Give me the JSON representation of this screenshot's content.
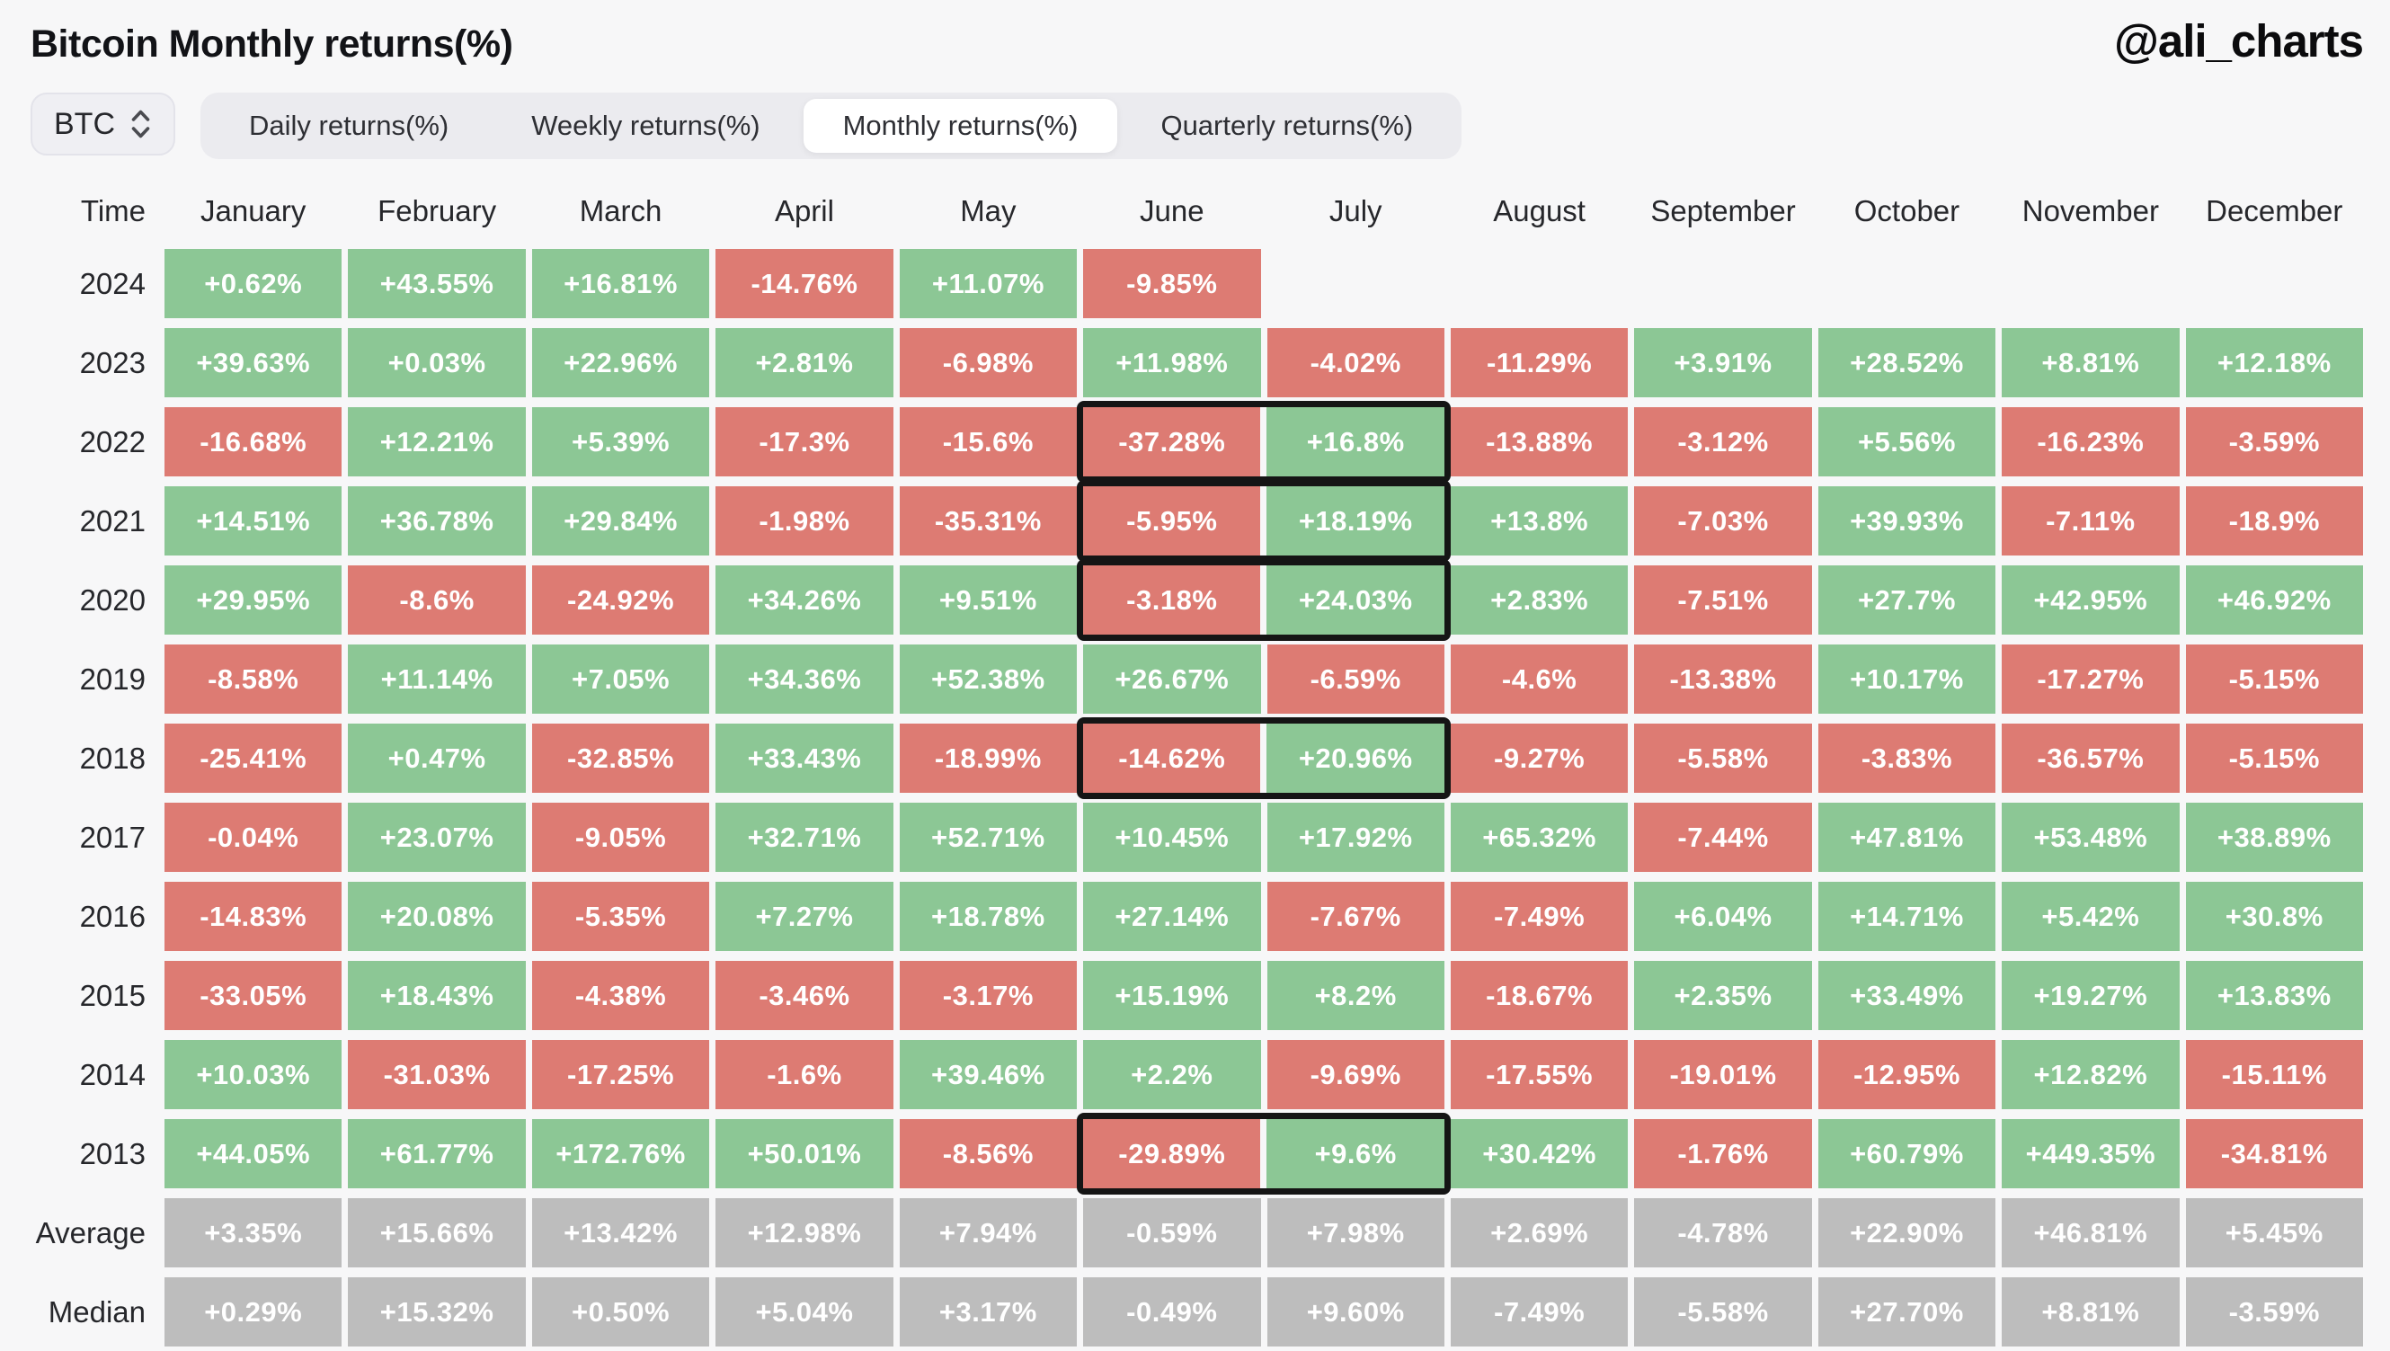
{
  "header": {
    "title": "Bitcoin Monthly returns(%)",
    "handle": "@ali_charts"
  },
  "controls": {
    "asset": "BTC",
    "asset_icon": "updown-chevron-icon",
    "tabs": [
      {
        "label": "Daily returns(%)",
        "active": false
      },
      {
        "label": "Weekly returns(%)",
        "active": false
      },
      {
        "label": "Monthly returns(%)",
        "active": true
      },
      {
        "label": "Quarterly returns(%)",
        "active": false
      }
    ]
  },
  "chart_data": {
    "type": "heatmap",
    "title": "Bitcoin Monthly returns(%)",
    "time_header": "Time",
    "months": [
      "January",
      "February",
      "March",
      "April",
      "May",
      "June",
      "July",
      "August",
      "September",
      "October",
      "November",
      "December"
    ],
    "rows": [
      {
        "label": "2024",
        "kind": "year",
        "box": false,
        "values": [
          "+0.62%",
          "+43.55%",
          "+16.81%",
          "-14.76%",
          "+11.07%",
          "-9.85%",
          "",
          "",
          "",
          "",
          "",
          ""
        ]
      },
      {
        "label": "2023",
        "kind": "year",
        "box": false,
        "values": [
          "+39.63%",
          "+0.03%",
          "+22.96%",
          "+2.81%",
          "-6.98%",
          "+11.98%",
          "-4.02%",
          "-11.29%",
          "+3.91%",
          "+28.52%",
          "+8.81%",
          "+12.18%"
        ]
      },
      {
        "label": "2022",
        "kind": "year",
        "box": true,
        "values": [
          "-16.68%",
          "+12.21%",
          "+5.39%",
          "-17.3%",
          "-15.6%",
          "-37.28%",
          "+16.8%",
          "-13.88%",
          "-3.12%",
          "+5.56%",
          "-16.23%",
          "-3.59%"
        ]
      },
      {
        "label": "2021",
        "kind": "year",
        "box": true,
        "values": [
          "+14.51%",
          "+36.78%",
          "+29.84%",
          "-1.98%",
          "-35.31%",
          "-5.95%",
          "+18.19%",
          "+13.8%",
          "-7.03%",
          "+39.93%",
          "-7.11%",
          "-18.9%"
        ]
      },
      {
        "label": "2020",
        "kind": "year",
        "box": true,
        "values": [
          "+29.95%",
          "-8.6%",
          "-24.92%",
          "+34.26%",
          "+9.51%",
          "-3.18%",
          "+24.03%",
          "+2.83%",
          "-7.51%",
          "+27.7%",
          "+42.95%",
          "+46.92%"
        ]
      },
      {
        "label": "2019",
        "kind": "year",
        "box": false,
        "values": [
          "-8.58%",
          "+11.14%",
          "+7.05%",
          "+34.36%",
          "+52.38%",
          "+26.67%",
          "-6.59%",
          "-4.6%",
          "-13.38%",
          "+10.17%",
          "-17.27%",
          "-5.15%"
        ]
      },
      {
        "label": "2018",
        "kind": "year",
        "box": true,
        "values": [
          "-25.41%",
          "+0.47%",
          "-32.85%",
          "+33.43%",
          "-18.99%",
          "-14.62%",
          "+20.96%",
          "-9.27%",
          "-5.58%",
          "-3.83%",
          "-36.57%",
          "-5.15%"
        ]
      },
      {
        "label": "2017",
        "kind": "year",
        "box": false,
        "values": [
          "-0.04%",
          "+23.07%",
          "-9.05%",
          "+32.71%",
          "+52.71%",
          "+10.45%",
          "+17.92%",
          "+65.32%",
          "-7.44%",
          "+47.81%",
          "+53.48%",
          "+38.89%"
        ]
      },
      {
        "label": "2016",
        "kind": "year",
        "box": false,
        "values": [
          "-14.83%",
          "+20.08%",
          "-5.35%",
          "+7.27%",
          "+18.78%",
          "+27.14%",
          "-7.67%",
          "-7.49%",
          "+6.04%",
          "+14.71%",
          "+5.42%",
          "+30.8%"
        ]
      },
      {
        "label": "2015",
        "kind": "year",
        "box": false,
        "values": [
          "-33.05%",
          "+18.43%",
          "-4.38%",
          "-3.46%",
          "-3.17%",
          "+15.19%",
          "+8.2%",
          "-18.67%",
          "+2.35%",
          "+33.49%",
          "+19.27%",
          "+13.83%"
        ]
      },
      {
        "label": "2014",
        "kind": "year",
        "box": false,
        "values": [
          "+10.03%",
          "-31.03%",
          "-17.25%",
          "-1.6%",
          "+39.46%",
          "+2.2%",
          "-9.69%",
          "-17.55%",
          "-19.01%",
          "-12.95%",
          "+12.82%",
          "-15.11%"
        ]
      },
      {
        "label": "2013",
        "kind": "year",
        "box": true,
        "values": [
          "+44.05%",
          "+61.77%",
          "+172.76%",
          "+50.01%",
          "-8.56%",
          "-29.89%",
          "+9.6%",
          "+30.42%",
          "-1.76%",
          "+60.79%",
          "+449.35%",
          "-34.81%"
        ]
      },
      {
        "label": "Average",
        "kind": "summary",
        "box": false,
        "values": [
          "+3.35%",
          "+15.66%",
          "+13.42%",
          "+12.98%",
          "+7.94%",
          "-0.59%",
          "+7.98%",
          "+2.69%",
          "-4.78%",
          "+22.90%",
          "+46.81%",
          "+5.45%"
        ]
      },
      {
        "label": "Median",
        "kind": "summary",
        "box": false,
        "values": [
          "+0.29%",
          "+15.32%",
          "+0.50%",
          "+5.04%",
          "+3.17%",
          "-0.49%",
          "+9.60%",
          "-7.49%",
          "-5.58%",
          "+27.70%",
          "+8.81%",
          "-3.59%"
        ]
      }
    ],
    "highlight_june_july_years": [
      "2022",
      "2021",
      "2020",
      "2018",
      "2013"
    ],
    "colors": {
      "positive": "#8CC795",
      "negative": "#DD7B73",
      "summary": "#BDBDBD",
      "highlight_border": "#151515",
      "page_bg": "#F7F7F8"
    },
    "color_rule": "cell is green if value starts with +, red if value starts with -, gray in Average/Median rows; black box outlines June+July pairs for highlighted years"
  }
}
